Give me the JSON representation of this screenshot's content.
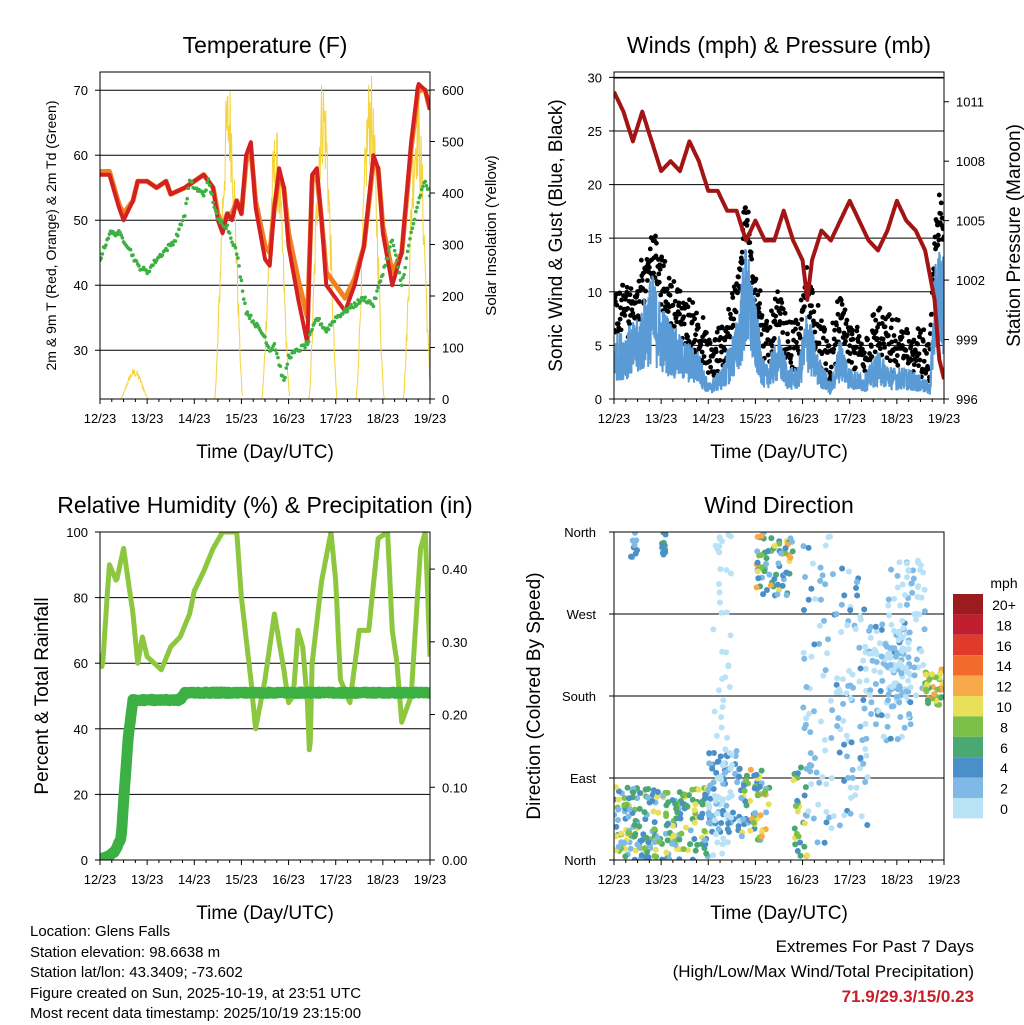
{
  "chart_data": [
    {
      "type": "line",
      "title": "Temperature (F)",
      "xlabel": "Time (Day/UTC)",
      "ylabel": "2m & 9m T (Red, Orange) & 2m Td (Green)",
      "y2label": "Solar Insolation (Yellow)",
      "x_ticks": [
        "12/23",
        "13/23",
        "14/23",
        "15/23",
        "16/23",
        "17/23",
        "18/23",
        "19/23"
      ],
      "xlim": [
        0,
        7
      ],
      "ylim": [
        22.5,
        72.8
      ],
      "y_ticks": [
        "30",
        "40",
        "50",
        "60",
        "70"
      ],
      "y2lim": [
        0,
        635
      ],
      "y2_ticks": [
        "0",
        "100",
        "200",
        "300",
        "400",
        "500",
        "600"
      ],
      "grid": true,
      "series": [
        {
          "name": "2m T",
          "color": "#d42020",
          "x": [
            0,
            0.2,
            0.4,
            0.5,
            0.7,
            0.8,
            1.0,
            1.2,
            1.4,
            1.5,
            1.8,
            2.0,
            2.2,
            2.4,
            2.5,
            2.6,
            2.7,
            2.8,
            2.9,
            3.0,
            3.1,
            3.2,
            3.3,
            3.5,
            3.6,
            3.7,
            3.8,
            3.9,
            4.0,
            4.2,
            4.4,
            4.45,
            4.5,
            4.6,
            4.7,
            4.8,
            5.0,
            5.2,
            5.4,
            5.6,
            5.8,
            5.9,
            6.0,
            6.2,
            6.4,
            6.6,
            6.75,
            6.9,
            7.0
          ],
          "y": [
            57,
            57,
            52,
            50,
            53,
            56,
            56,
            55,
            56,
            54,
            55,
            56,
            57,
            55,
            50,
            48,
            51,
            50,
            53,
            51,
            60,
            62,
            52,
            44,
            43,
            52,
            58,
            55,
            46,
            38,
            31,
            45,
            57,
            58,
            50,
            40,
            38,
            36,
            40,
            46,
            60,
            58,
            48,
            40,
            45,
            62,
            71,
            70,
            67
          ]
        },
        {
          "name": "9m T",
          "color": "#f08020",
          "x": [
            0,
            0.2,
            0.4,
            0.5,
            0.7,
            0.8,
            1.0,
            1.2,
            1.4,
            1.5,
            1.8,
            2.0,
            2.2,
            2.4,
            2.5,
            2.6,
            2.7,
            2.8,
            2.9,
            3.0,
            3.1,
            3.2,
            3.3,
            3.5,
            3.6,
            3.7,
            3.8,
            3.9,
            4.0,
            4.2,
            4.4,
            4.45,
            4.5,
            4.6,
            4.7,
            4.8,
            5.0,
            5.2,
            5.4,
            5.6,
            5.8,
            5.9,
            6.0,
            6.2,
            6.4,
            6.6,
            6.75,
            6.9,
            7.0
          ],
          "y": [
            57.5,
            57.5,
            52.5,
            51,
            53,
            56,
            56,
            55,
            56,
            54,
            55,
            56,
            57,
            55,
            51,
            49,
            51,
            51,
            53,
            51,
            59,
            61,
            53,
            46,
            45,
            52,
            57,
            55,
            48,
            41,
            35,
            45,
            56,
            57,
            50,
            42,
            40,
            38,
            41,
            46,
            59,
            58,
            49,
            42,
            45,
            61,
            70,
            70,
            67
          ]
        },
        {
          "name": "2m Td",
          "color": "#3cb043",
          "x": [
            0,
            0.2,
            0.4,
            0.6,
            0.8,
            1.0,
            1.2,
            1.6,
            1.8,
            1.9,
            2.0,
            2.2,
            2.3,
            2.5,
            2.7,
            2.9,
            3.1,
            3.2,
            3.4,
            3.5,
            3.6,
            3.7,
            3.8,
            3.9,
            4.0,
            4.2,
            4.4,
            4.6,
            4.8,
            5.0,
            5.2,
            5.4,
            5.6,
            5.8,
            6.0,
            6.2,
            6.4,
            6.6,
            6.8,
            6.9,
            7.0
          ],
          "y": [
            44,
            48,
            48,
            46,
            43,
            42,
            44,
            47,
            51,
            56,
            55,
            54,
            56,
            50,
            49,
            45,
            36,
            35,
            33,
            32,
            30,
            31,
            28,
            25,
            29,
            30,
            31,
            35,
            33,
            35,
            36,
            37,
            38,
            37,
            42,
            47,
            40,
            48,
            54,
            56,
            54
          ]
        },
        {
          "name": "Solar Insolation",
          "color": "#f5d33a",
          "axis": "right",
          "daily_peak_day_fraction": 0.73,
          "peaks": [
            60,
            190,
            630,
            530,
            640,
            640,
            600
          ]
        }
      ]
    },
    {
      "type": "line",
      "title": "Winds (mph) & Pressure (mb)",
      "xlabel": "Time (Day/UTC)",
      "ylabel": "Sonic Wind & Gust (Blue, Black)",
      "y2label": "Station Pressure (Maroon)",
      "x_ticks": [
        "12/23",
        "13/23",
        "14/23",
        "15/23",
        "16/23",
        "17/23",
        "18/23",
        "19/23"
      ],
      "xlim": [
        0,
        7
      ],
      "ylim": [
        0,
        30.5
      ],
      "y_ticks": [
        "0",
        "5",
        "10",
        "15",
        "20",
        "25",
        "30"
      ],
      "y2lim": [
        996,
        1012.5
      ],
      "y2_ticks": [
        "996",
        "999",
        "1002",
        "1005",
        "1008",
        "1011"
      ],
      "grid": true,
      "series": [
        {
          "name": "Sonic Wind",
          "color": "#5b9bd5",
          "x": [
            0,
            0.5,
            0.8,
            1.0,
            1.4,
            1.8,
            2.0,
            2.3,
            2.6,
            2.8,
            3.0,
            3.2,
            3.5,
            3.7,
            3.9,
            4.1,
            4.3,
            4.6,
            4.8,
            5.0,
            5.3,
            5.6,
            5.9,
            6.2,
            6.5,
            6.7,
            6.8,
            6.9,
            7.0
          ],
          "y": [
            4,
            5,
            8,
            6,
            4,
            3,
            1,
            2,
            5,
            10,
            6,
            2,
            4,
            2,
            2,
            6,
            3,
            1,
            4,
            2,
            1.5,
            3,
            2,
            2,
            1.5,
            1,
            8,
            10,
            9
          ]
        },
        {
          "name": "Gust",
          "color": "#000000",
          "gust_factor": 1.5,
          "gust_offset": 2
        },
        {
          "name": "Station Pressure",
          "color": "#a31515",
          "axis": "right",
          "x": [
            0,
            0.2,
            0.4,
            0.6,
            0.8,
            1.0,
            1.2,
            1.4,
            1.6,
            1.8,
            2.0,
            2.2,
            2.4,
            2.6,
            2.8,
            3.0,
            3.2,
            3.4,
            3.6,
            3.8,
            4.0,
            4.1,
            4.2,
            4.4,
            4.6,
            4.8,
            5.0,
            5.2,
            5.4,
            5.6,
            5.8,
            6.0,
            6.2,
            6.4,
            6.6,
            6.8,
            6.9,
            7.0
          ],
          "y": [
            1011.5,
            1010.5,
            1009,
            1010.5,
            1009,
            1007.5,
            1008,
            1007.5,
            1009,
            1008,
            1006.5,
            1006.5,
            1005.5,
            1005.5,
            1004,
            1005,
            1004,
            1004,
            1005.5,
            1004,
            1003,
            1001,
            1003,
            1004.5,
            1004,
            1005,
            1006,
            1005,
            1004,
            1003.5,
            1004.5,
            1006,
            1005,
            1004.5,
            1003.5,
            1001,
            998,
            997
          ]
        }
      ]
    },
    {
      "type": "line",
      "title": "Relative Humidity (%) & Precipitation (in)",
      "xlabel": "Time (Day/UTC)",
      "ylabel": "Percent & Total Rainfall",
      "x_ticks": [
        "12/23",
        "13/23",
        "14/23",
        "15/23",
        "16/23",
        "17/23",
        "18/23",
        "19/23"
      ],
      "xlim": [
        0,
        7
      ],
      "ylim": [
        0,
        100
      ],
      "y_ticks": [
        "0",
        "20",
        "40",
        "60",
        "80",
        "100"
      ],
      "y2lim": [
        0,
        0.451
      ],
      "y2_ticks": [
        "0.00",
        "0.10",
        "0.20",
        "0.30",
        "0.40"
      ],
      "grid": true,
      "series": [
        {
          "name": "Relative Humidity",
          "color": "#8dc63f",
          "x": [
            0,
            0.05,
            0.15,
            0.2,
            0.35,
            0.5,
            0.7,
            0.8,
            0.9,
            1.0,
            1.3,
            1.5,
            1.7,
            1.9,
            2.0,
            2.2,
            2.4,
            2.6,
            2.9,
            3.0,
            3.2,
            3.3,
            3.5,
            3.7,
            3.9,
            4.0,
            4.1,
            4.2,
            4.3,
            4.4,
            4.45,
            4.5,
            4.7,
            4.9,
            5.0,
            5.1,
            5.3,
            5.5,
            5.7,
            5.9,
            6.1,
            6.2,
            6.3,
            6.4,
            6.6,
            6.8,
            6.9,
            7.0
          ],
          "y": [
            63,
            58,
            80,
            90,
            85,
            95,
            75,
            60,
            68,
            62,
            58,
            65,
            68,
            75,
            82,
            88,
            95,
            100,
            100,
            80,
            55,
            40,
            55,
            75,
            58,
            48,
            50,
            70,
            65,
            48,
            30,
            60,
            85,
            100,
            85,
            55,
            48,
            70,
            70,
            98,
            100,
            70,
            60,
            42,
            50,
            95,
            100,
            62
          ]
        },
        {
          "name": "Total Precipitation",
          "color": "#3cb043",
          "axis": "right",
          "x": [
            0,
            0.3,
            0.45,
            0.5,
            0.6,
            0.7,
            1.7,
            1.8,
            7.0
          ],
          "y": [
            0,
            0.01,
            0.03,
            0.08,
            0.17,
            0.22,
            0.22,
            0.23,
            0.23
          ]
        }
      ]
    },
    {
      "type": "scatter",
      "title": "Wind Direction",
      "xlabel": "Time (Day/UTC)",
      "ylabel": "Direction (Colored By Speed)",
      "x_ticks": [
        "12/23",
        "13/23",
        "14/23",
        "15/23",
        "16/23",
        "17/23",
        "18/23",
        "19/23"
      ],
      "xlim": [
        0,
        7
      ],
      "ylim": [
        0,
        360
      ],
      "y_ticks": [
        "North",
        "East",
        "South",
        "West",
        "North"
      ],
      "grid": true,
      "legend": {
        "title": "mph",
        "placement": "right",
        "labels": [
          "20+",
          "18",
          "16",
          "14",
          "12",
          "10",
          "8",
          "6",
          "4",
          "2",
          "0"
        ],
        "colors": [
          "#9b1b1e",
          "#be1e2d",
          "#e03a2c",
          "#f26a2c",
          "#f8a94a",
          "#e8e05a",
          "#7cc04a",
          "#4aa872",
          "#4a8fc8",
          "#7fb9e6",
          "#b9e2f7"
        ]
      },
      "clusters": [
        {
          "x": [
            0,
            0.9
          ],
          "dir": [
            0,
            80
          ],
          "speed": [
            2,
            12
          ],
          "n": 120
        },
        {
          "x": [
            0.9,
            2.0
          ],
          "dir": [
            0,
            80
          ],
          "speed": [
            3,
            12
          ],
          "n": 110
        },
        {
          "x": [
            2.0,
            2.7
          ],
          "dir": [
            30,
            120
          ],
          "speed": [
            1,
            6
          ],
          "n": 80
        },
        {
          "x": [
            2.1,
            2.5
          ],
          "dir": [
            0,
            360
          ],
          "speed": [
            0,
            2
          ],
          "n": 60
        },
        {
          "x": [
            2.7,
            3.3
          ],
          "dir": [
            20,
            100
          ],
          "speed": [
            2,
            13
          ],
          "n": 60
        },
        {
          "x": [
            3.0,
            3.8
          ],
          "dir": [
            290,
            360
          ],
          "speed": [
            2,
            14
          ],
          "n": 70
        },
        {
          "x": [
            3.8,
            4.1
          ],
          "dir": [
            0,
            110
          ],
          "speed": [
            4,
            14
          ],
          "n": 25
        },
        {
          "x": [
            4.0,
            4.6
          ],
          "dir": [
            0,
            360
          ],
          "speed": [
            0,
            5
          ],
          "n": 60
        },
        {
          "x": [
            4.6,
            5.4
          ],
          "dir": [
            30,
            320
          ],
          "speed": [
            0,
            5
          ],
          "n": 90
        },
        {
          "x": [
            5.4,
            6.3
          ],
          "dir": [
            130,
            260
          ],
          "speed": [
            0,
            5
          ],
          "n": 110
        },
        {
          "x": [
            5.8,
            6.6
          ],
          "dir": [
            180,
            330
          ],
          "speed": [
            0,
            3
          ],
          "n": 80
        },
        {
          "x": [
            6.6,
            7.0
          ],
          "dir": [
            170,
            210
          ],
          "speed": [
            6,
            13
          ],
          "n": 40
        },
        {
          "x": [
            0.3,
            0.5
          ],
          "dir": [
            330,
            360
          ],
          "speed": [
            2,
            5
          ],
          "n": 10
        },
        {
          "x": [
            1.0,
            1.1
          ],
          "dir": [
            330,
            360
          ],
          "speed": [
            3,
            8
          ],
          "n": 15
        }
      ]
    }
  ],
  "info": {
    "location": "Location: Glens Falls",
    "elevation": "Station elevation: 98.6638 m",
    "latlon": "Station lat/lon: 43.3409; -73.602",
    "created": "Figure created on Sun, 2025-10-19, at 23:51 UTC",
    "recent": "Most recent data timestamp: 2025/10/19 23:15:00"
  },
  "extremes": {
    "title": "Extremes For Past 7 Days",
    "subtitle": "(High/Low/Max Wind/Total Precipitation)",
    "values": "71.9/29.3/15/0.23"
  }
}
